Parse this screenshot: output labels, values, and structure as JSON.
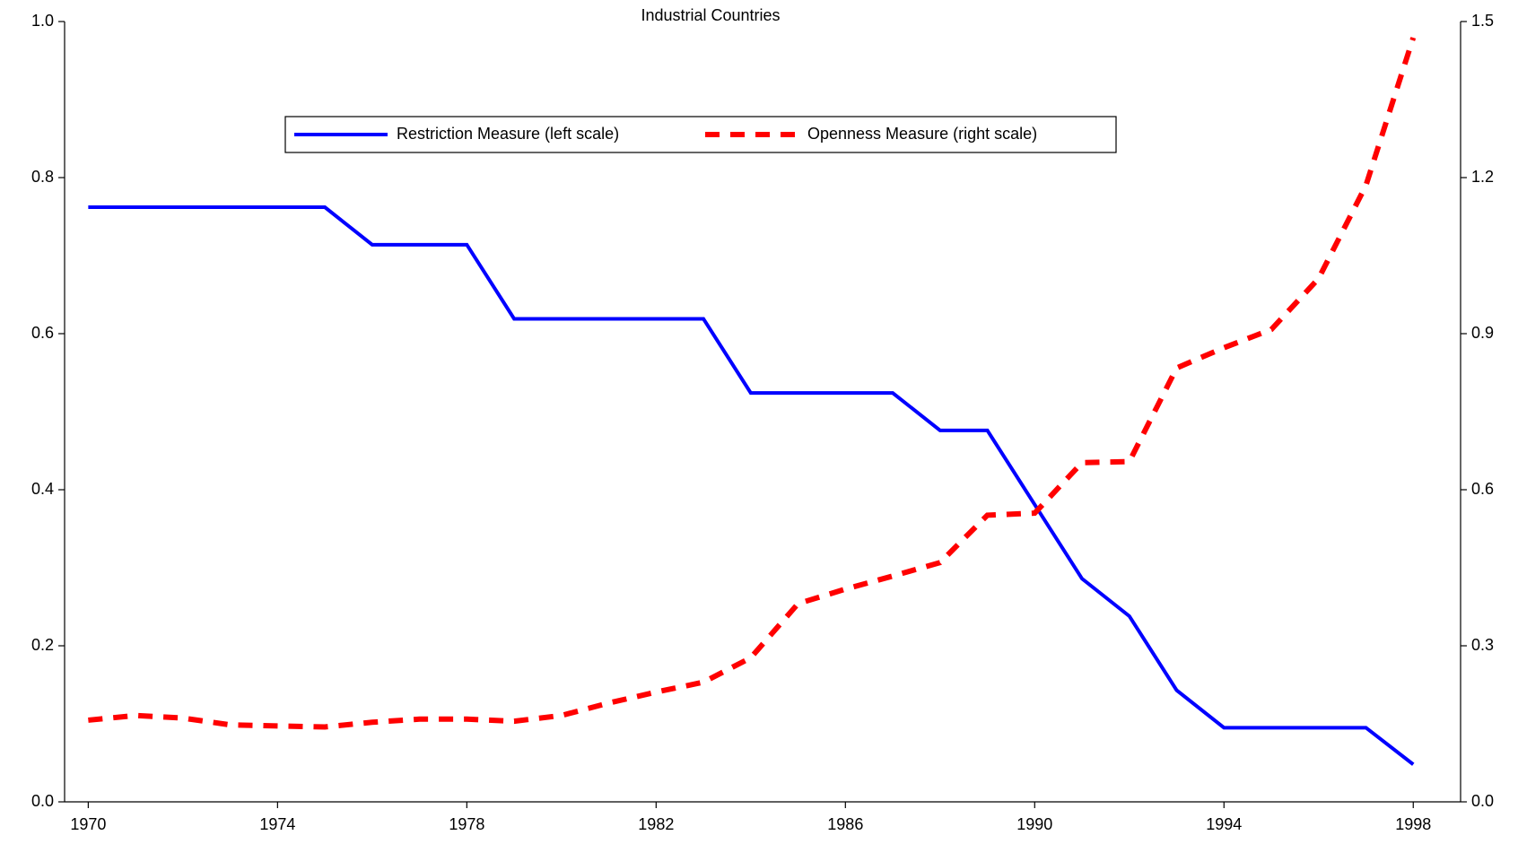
{
  "chart_data": {
    "type": "line",
    "title": "Industrial Countries",
    "x": [
      1970,
      1971,
      1972,
      1973,
      1974,
      1975,
      1976,
      1977,
      1978,
      1979,
      1980,
      1981,
      1982,
      1983,
      1984,
      1985,
      1986,
      1987,
      1988,
      1989,
      1990,
      1991,
      1992,
      1993,
      1994,
      1995,
      1996,
      1997,
      1998
    ],
    "xlim": [
      1969.5,
      1999
    ],
    "xticks": [
      1970,
      1974,
      1978,
      1982,
      1986,
      1990,
      1994,
      1998
    ],
    "ylim": [
      0,
      1
    ],
    "yticks": [
      {
        "value": 0,
        "label": "0.0"
      },
      0.2,
      0.4,
      0.6,
      0.8,
      {
        "value": 1,
        "label": "1.0"
      }
    ],
    "y2lim": [
      0,
      1.5
    ],
    "y2ticks": [
      {
        "value": 0,
        "label": "0.0"
      },
      0.3,
      0.6,
      0.9,
      1.2,
      1.5
    ],
    "series": [
      {
        "name": "Restriction Measure (left scale)",
        "color": "#0000ff",
        "dashed": false,
        "values": [
          0.762,
          0.762,
          0.762,
          0.762,
          0.762,
          0.762,
          0.714,
          0.714,
          0.714,
          0.619,
          0.619,
          0.619,
          0.619,
          0.619,
          0.524,
          0.524,
          0.524,
          0.524,
          0.476,
          0.476,
          0.381,
          0.286,
          0.238,
          0.143,
          0.095,
          0.095,
          0.095,
          0.095,
          0.048
        ]
      },
      {
        "name": "Openness Measure (right scale)",
        "color": "#ff0000",
        "dashed": true,
        "axis": "y2",
        "values": [
          0.157,
          0.166,
          0.161,
          0.148,
          0.146,
          0.144,
          0.153,
          0.159,
          0.159,
          0.155,
          0.166,
          0.19,
          0.211,
          0.23,
          0.277,
          0.381,
          0.409,
          0.434,
          0.46,
          0.551,
          0.555,
          0.652,
          0.654,
          0.834,
          0.873,
          0.908,
          1.006,
          1.185,
          1.469
        ]
      }
    ]
  }
}
